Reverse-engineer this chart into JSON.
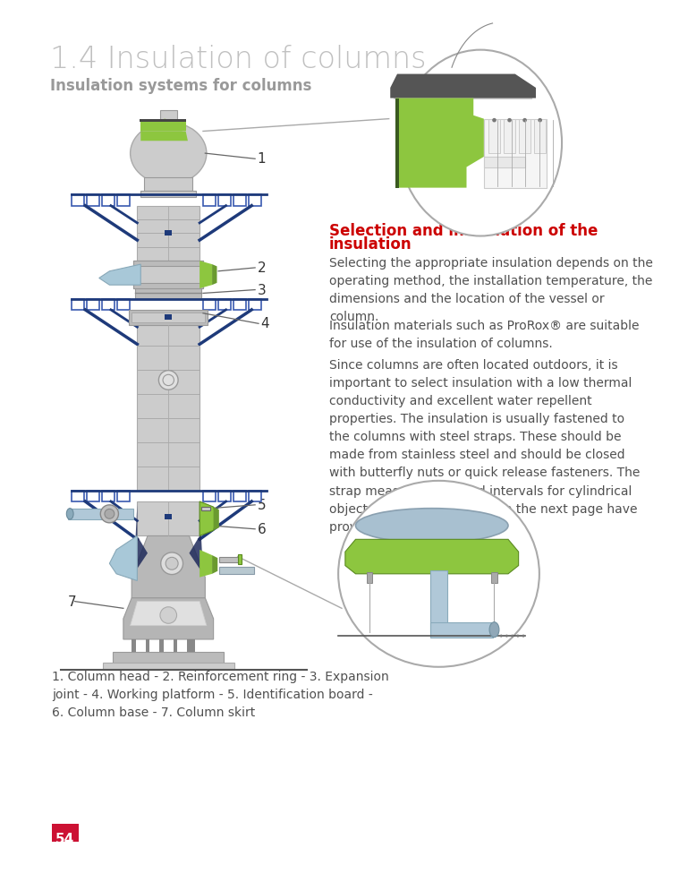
{
  "title": "1.4 Insulation of columns",
  "subtitle": "Insulation systems for columns",
  "title_color": "#c0c0c0",
  "subtitle_color": "#999999",
  "section_heading_line1": "Selection and installation of the",
  "section_heading_line2": "insulation",
  "section_heading_color": "#cc0000",
  "para1": "Selecting the appropriate insulation depends on the\noperating method, the installation temperature, the\ndimensions and the location of the vessel or\ncolumn.",
  "para2": "Insulation materials such as ProRox® are suitable\nfor use of the insulation of columns.",
  "para3": "Since columns are often located outdoors, it is\nimportant to select insulation with a low thermal\nconductivity and excellent water repellent\nproperties. The insulation is usually fastened to\nthe columns with steel straps. These should be\nmade from stainless steel and should be closed\nwith butterfly nuts or quick release fasteners. The\nstrap measurements and intervals for cylindrical\nobjects shown in the table on the next page have\nproved useful in many projects.",
  "caption": "1. Column head - 2. Reinforcement ring - 3. Expansion\njoint - 4. Working platform - 5. Identification board -\n6. Column base - 7. Column skirt",
  "page_number": "54",
  "bg_color": "#ffffff",
  "text_color": "#505050",
  "green_color": "#8dc63f",
  "blue_color": "#1e3a7a",
  "light_gray": "#d8d8d8",
  "dark_gray": "#888888",
  "steel_gray": "#cccccc",
  "mid_gray": "#b0b0b0",
  "page_red": "#cc1133"
}
